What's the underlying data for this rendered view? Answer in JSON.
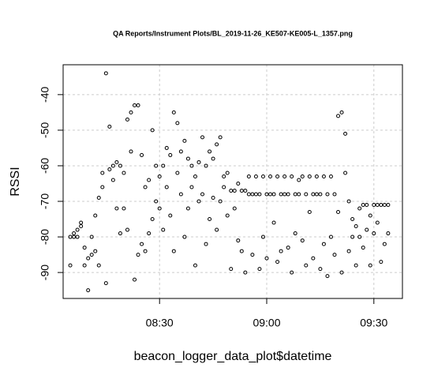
{
  "chart_data": {
    "type": "scatter",
    "title": "QA Reports/Instrument Plots/BL_2019-11-26_KE507-KE005-L_1357.png",
    "x_label": "beacon_logger_data_plot$datetime",
    "y_label": "RSSI",
    "x": [
      "08:05",
      "08:05",
      "08:06",
      "08:06",
      "08:07",
      "08:07",
      "08:08",
      "08:08",
      "08:09",
      "08:09",
      "08:10",
      "08:10",
      "08:11",
      "08:11",
      "08:12",
      "08:12",
      "08:13",
      "08:13",
      "08:14",
      "08:14",
      "08:15",
      "08:15",
      "08:16",
      "08:16",
      "08:17",
      "08:17",
      "08:18",
      "08:18",
      "08:19",
      "08:19",
      "08:20",
      "08:20",
      "08:21",
      "08:21",
      "08:22",
      "08:22",
      "08:23",
      "08:23",
      "08:24",
      "08:24",
      "08:25",
      "08:25",
      "08:26",
      "08:26",
      "08:27",
      "08:27",
      "08:28",
      "08:28",
      "08:29",
      "08:29",
      "08:30",
      "08:30",
      "08:31",
      "08:31",
      "08:32",
      "08:32",
      "08:33",
      "08:33",
      "08:34",
      "08:34",
      "08:35",
      "08:35",
      "08:36",
      "08:36",
      "08:37",
      "08:37",
      "08:38",
      "08:38",
      "08:39",
      "08:39",
      "08:40",
      "08:40",
      "08:41",
      "08:41",
      "08:42",
      "08:42",
      "08:43",
      "08:43",
      "08:44",
      "08:44",
      "08:45",
      "08:45",
      "08:46",
      "08:46",
      "08:47",
      "08:47",
      "08:48",
      "08:48",
      "08:49",
      "08:49",
      "08:50",
      "08:50",
      "08:51",
      "08:51",
      "08:52",
      "08:52",
      "08:53",
      "08:53",
      "08:54",
      "08:54",
      "08:55",
      "08:55",
      "08:56",
      "08:56",
      "08:57",
      "08:57",
      "08:58",
      "08:58",
      "08:59",
      "08:59",
      "09:00",
      "09:00",
      "09:01",
      "09:01",
      "09:02",
      "09:02",
      "09:03",
      "09:03",
      "09:04",
      "09:04",
      "09:05",
      "09:05",
      "09:06",
      "09:06",
      "09:07",
      "09:07",
      "09:08",
      "09:08",
      "09:09",
      "09:09",
      "09:10",
      "09:10",
      "09:11",
      "09:11",
      "09:12",
      "09:12",
      "09:13",
      "09:13",
      "09:14",
      "09:14",
      "09:15",
      "09:15",
      "09:16",
      "09:16",
      "09:17",
      "09:17",
      "09:18",
      "09:18",
      "09:19",
      "09:19",
      "09:20",
      "09:20",
      "09:21",
      "09:21",
      "09:22",
      "09:22",
      "09:23",
      "09:23",
      "09:24",
      "09:24",
      "09:25",
      "09:25",
      "09:26",
      "09:26",
      "09:27",
      "09:27",
      "09:28",
      "09:28",
      "09:29",
      "09:29",
      "09:30",
      "09:30",
      "09:31",
      "09:31",
      "09:32",
      "09:32",
      "09:33",
      "09:33",
      "09:34",
      "09:34"
    ],
    "values": [
      -80,
      -88,
      -80,
      -79,
      -80,
      -78,
      -77,
      -76,
      -83,
      -88,
      -95,
      -86,
      -80,
      -85,
      -84,
      -74,
      -88,
      -69,
      -62,
      -66,
      -34,
      -93,
      -49,
      -61,
      -60,
      -64,
      -59,
      -72,
      -60,
      -79,
      -62,
      -72,
      -47,
      -78,
      -45,
      -56,
      -43,
      -92,
      -43,
      -85,
      -57,
      -82,
      -66,
      -84,
      -64,
      -79,
      -50,
      -75,
      -60,
      -70,
      -63,
      -72,
      -60,
      -78,
      -55,
      -66,
      -57,
      -74,
      -45,
      -84,
      -48,
      -62,
      -56,
      -68,
      -53,
      -80,
      -58,
      -72,
      -60,
      -66,
      -63,
      -88,
      -59,
      -70,
      -52,
      -68,
      -60,
      -82,
      -56,
      -75,
      -58,
      -69,
      -54,
      -78,
      -52,
      -70,
      -63,
      -66,
      -62,
      -74,
      -67,
      -89,
      -67,
      -72,
      -65,
      -81,
      -67,
      -84,
      -67,
      -90,
      -63,
      -68,
      -68,
      -85,
      -63,
      -68,
      -68,
      -89,
      -63,
      -80,
      -68,
      -86,
      -63,
      -68,
      -68,
      -76,
      -63,
      -87,
      -68,
      -84,
      -63,
      -68,
      -68,
      -83,
      -63,
      -90,
      -68,
      -79,
      -64,
      -68,
      -63,
      -81,
      -68,
      -88,
      -63,
      -73,
      -68,
      -86,
      -63,
      -68,
      -68,
      -89,
      -63,
      -82,
      -68,
      -91,
      -63,
      -80,
      -68,
      -85,
      -46,
      -73,
      -45,
      -90,
      -51,
      -62,
      -70,
      -84,
      -75,
      -80,
      -88,
      -77,
      -72,
      -80,
      -71,
      -83,
      -71,
      -78,
      -74,
      -88,
      -71,
      -79,
      -71,
      -76,
      -71,
      -87,
      -71,
      -82,
      -71,
      -79
    ],
    "color": "#000000",
    "xlim": [
      "08:03",
      "09:38"
    ],
    "xticks": [
      "08:30",
      "09:00",
      "09:30"
    ],
    "ylim": [
      -97.3,
      -31.6
    ],
    "yticks": [
      -90,
      -80,
      -70,
      -60,
      -50,
      -40
    ],
    "grid": true
  }
}
